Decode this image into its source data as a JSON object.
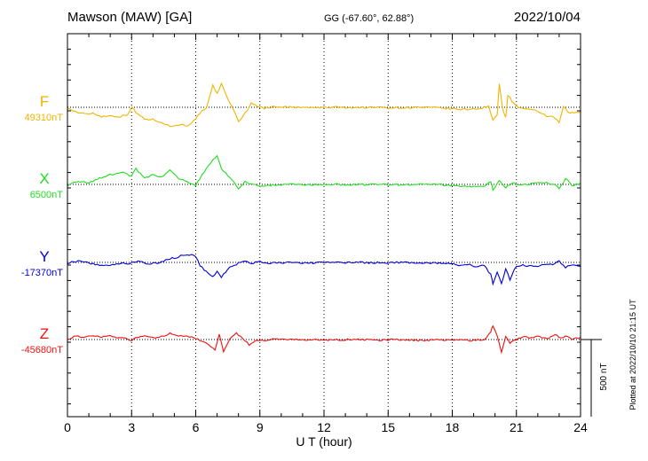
{
  "chart_data": {
    "type": "line",
    "title": "Mawson (MAW)  [GA]",
    "subtitle": "GG (-67.60°,  62.88°)",
    "date": "2022/10/04",
    "xlabel": "U T (hour)",
    "xlim": [
      0,
      24
    ],
    "xticks": [
      "0",
      "3",
      "6",
      "9",
      "12",
      "15",
      "18",
      "21",
      "24"
    ],
    "grid": true,
    "scale_label": "500 nT",
    "footer": "Plotted at 2022/10/10 21:15 UT",
    "series": [
      {
        "name": "F",
        "baseline_label": "49310nT",
        "color": "#f0b400",
        "points": [
          [
            0,
            -6
          ],
          [
            0.4,
            -30
          ],
          [
            0.8,
            -45
          ],
          [
            1.2,
            -38
          ],
          [
            1.6,
            -60
          ],
          [
            2.0,
            -55
          ],
          [
            2.4,
            -60
          ],
          [
            2.8,
            -50
          ],
          [
            3.0,
            5
          ],
          [
            3.2,
            -35
          ],
          [
            3.6,
            -75
          ],
          [
            4.0,
            -80
          ],
          [
            4.4,
            -95
          ],
          [
            4.8,
            -125
          ],
          [
            5.2,
            -112
          ],
          [
            5.6,
            -118
          ],
          [
            6.0,
            -80
          ],
          [
            6.2,
            -35
          ],
          [
            6.5,
            -10
          ],
          [
            6.8,
            140
          ],
          [
            7.0,
            90
          ],
          [
            7.2,
            150
          ],
          [
            7.5,
            60
          ],
          [
            7.8,
            -30
          ],
          [
            8.0,
            -90
          ],
          [
            8.2,
            -60
          ],
          [
            8.4,
            -20
          ],
          [
            8.6,
            30
          ],
          [
            8.8,
            10
          ],
          [
            9.2,
            -5
          ],
          [
            9.8,
            5
          ],
          [
            10.5,
            0
          ],
          [
            11.5,
            -3
          ],
          [
            12.5,
            0
          ],
          [
            13.5,
            -2
          ],
          [
            14.5,
            0
          ],
          [
            15.5,
            -3
          ],
          [
            16.5,
            0
          ],
          [
            17.5,
            -5
          ],
          [
            18.0,
            -10
          ],
          [
            18.5,
            -15
          ],
          [
            19.0,
            -10
          ],
          [
            19.4,
            -5
          ],
          [
            19.7,
            10
          ],
          [
            19.9,
            -90
          ],
          [
            20.1,
            -45
          ],
          [
            20.2,
            150
          ],
          [
            20.35,
            0
          ],
          [
            20.5,
            -70
          ],
          [
            20.6,
            80
          ],
          [
            20.8,
            40
          ],
          [
            21.0,
            5
          ],
          [
            21.5,
            -15
          ],
          [
            22.0,
            -25
          ],
          [
            22.4,
            -55
          ],
          [
            22.8,
            -70
          ],
          [
            23.0,
            -100
          ],
          [
            23.2,
            0
          ],
          [
            23.5,
            -40
          ],
          [
            24,
            -30
          ]
        ]
      },
      {
        "name": "X",
        "baseline_label": "6500nT",
        "color": "#22dd22",
        "points": [
          [
            0,
            -5
          ],
          [
            0.5,
            20
          ],
          [
            1.0,
            10
          ],
          [
            1.5,
            40
          ],
          [
            2.0,
            60
          ],
          [
            2.5,
            80
          ],
          [
            3.0,
            55
          ],
          [
            3.2,
            100
          ],
          [
            3.6,
            40
          ],
          [
            4.0,
            60
          ],
          [
            4.4,
            50
          ],
          [
            4.8,
            90
          ],
          [
            5.2,
            40
          ],
          [
            5.6,
            20
          ],
          [
            6.0,
            -10
          ],
          [
            6.2,
            40
          ],
          [
            6.6,
            120
          ],
          [
            7.0,
            190
          ],
          [
            7.2,
            100
          ],
          [
            7.5,
            60
          ],
          [
            7.8,
            10
          ],
          [
            8.0,
            -30
          ],
          [
            8.3,
            20
          ],
          [
            8.6,
            0
          ],
          [
            9.0,
            -10
          ],
          [
            9.5,
            -5
          ],
          [
            10.5,
            0
          ],
          [
            11.5,
            -3
          ],
          [
            12.5,
            0
          ],
          [
            13.5,
            -2
          ],
          [
            14.5,
            0
          ],
          [
            15.5,
            -3
          ],
          [
            16.5,
            0
          ],
          [
            17.5,
            -2
          ],
          [
            18.0,
            -10
          ],
          [
            18.5,
            -15
          ],
          [
            19.0,
            -10
          ],
          [
            19.5,
            -15
          ],
          [
            19.8,
            20
          ],
          [
            19.9,
            -40
          ],
          [
            20.2,
            30
          ],
          [
            20.5,
            -20
          ],
          [
            20.8,
            10
          ],
          [
            21.2,
            -5
          ],
          [
            21.8,
            5
          ],
          [
            22.4,
            10
          ],
          [
            22.8,
            -5
          ],
          [
            23.0,
            -30
          ],
          [
            23.3,
            40
          ],
          [
            23.6,
            -10
          ],
          [
            24,
            10
          ]
        ]
      },
      {
        "name": "Y",
        "baseline_label": "-17370nT",
        "color": "#0000dd",
        "points": [
          [
            0,
            -5
          ],
          [
            0.5,
            10
          ],
          [
            1.0,
            -5
          ],
          [
            1.5,
            -15
          ],
          [
            2.0,
            -20
          ],
          [
            2.5,
            -5
          ],
          [
            3.0,
            -5
          ],
          [
            3.4,
            10
          ],
          [
            3.8,
            -10
          ],
          [
            4.2,
            -5
          ],
          [
            4.6,
            15
          ],
          [
            5.0,
            30
          ],
          [
            5.4,
            45
          ],
          [
            5.8,
            50
          ],
          [
            6.0,
            40
          ],
          [
            6.2,
            -20
          ],
          [
            6.5,
            -60
          ],
          [
            6.8,
            -95
          ],
          [
            7.0,
            -60
          ],
          [
            7.2,
            -100
          ],
          [
            7.5,
            -40
          ],
          [
            7.8,
            -20
          ],
          [
            8.0,
            -5
          ],
          [
            8.3,
            10
          ],
          [
            8.6,
            -5
          ],
          [
            9.0,
            5
          ],
          [
            9.5,
            -5
          ],
          [
            10.5,
            0
          ],
          [
            11.5,
            -3
          ],
          [
            12.5,
            -2
          ],
          [
            13.5,
            0
          ],
          [
            14.5,
            -2
          ],
          [
            15.5,
            0
          ],
          [
            16.5,
            -2
          ],
          [
            17.5,
            -5
          ],
          [
            18.0,
            -10
          ],
          [
            18.4,
            -20
          ],
          [
            18.8,
            -15
          ],
          [
            19.2,
            -30
          ],
          [
            19.5,
            -20
          ],
          [
            19.8,
            -80
          ],
          [
            19.9,
            -140
          ],
          [
            20.1,
            -60
          ],
          [
            20.3,
            -140
          ],
          [
            20.5,
            -40
          ],
          [
            20.7,
            -110
          ],
          [
            21.0,
            -20
          ],
          [
            21.5,
            -20
          ],
          [
            22.0,
            -30
          ],
          [
            22.4,
            -10
          ],
          [
            22.8,
            -10
          ],
          [
            23.0,
            5
          ],
          [
            23.3,
            -30
          ],
          [
            23.6,
            -20
          ],
          [
            24,
            -25
          ]
        ]
      },
      {
        "name": "Z",
        "baseline_label": "-45680nT",
        "color": "#ee1111",
        "points": [
          [
            0,
            5
          ],
          [
            0.4,
            20
          ],
          [
            0.8,
            15
          ],
          [
            1.2,
            25
          ],
          [
            1.6,
            15
          ],
          [
            2.0,
            20
          ],
          [
            2.4,
            15
          ],
          [
            2.8,
            5
          ],
          [
            3.0,
            -5
          ],
          [
            3.2,
            10
          ],
          [
            3.6,
            25
          ],
          [
            4.0,
            10
          ],
          [
            4.4,
            20
          ],
          [
            4.8,
            40
          ],
          [
            5.2,
            25
          ],
          [
            5.6,
            20
          ],
          [
            6.0,
            10
          ],
          [
            6.3,
            -15
          ],
          [
            6.6,
            -30
          ],
          [
            6.9,
            -70
          ],
          [
            7.1,
            40
          ],
          [
            7.3,
            -80
          ],
          [
            7.6,
            10
          ],
          [
            7.9,
            40
          ],
          [
            8.2,
            10
          ],
          [
            8.5,
            -35
          ],
          [
            8.8,
            -10
          ],
          [
            9.2,
            -5
          ],
          [
            9.8,
            5
          ],
          [
            10.5,
            0
          ],
          [
            11.5,
            -3
          ],
          [
            12.5,
            -2
          ],
          [
            13.5,
            0
          ],
          [
            14.5,
            -3
          ],
          [
            15.5,
            0
          ],
          [
            16.5,
            -5
          ],
          [
            17.5,
            -3
          ],
          [
            18.0,
            -5
          ],
          [
            18.5,
            -3
          ],
          [
            19.0,
            -5
          ],
          [
            19.5,
            0
          ],
          [
            19.8,
            50
          ],
          [
            19.9,
            90
          ],
          [
            20.1,
            30
          ],
          [
            20.3,
            -80
          ],
          [
            20.5,
            20
          ],
          [
            20.7,
            -20
          ],
          [
            21.0,
            0
          ],
          [
            21.3,
            20
          ],
          [
            21.7,
            10
          ],
          [
            22.0,
            20
          ],
          [
            22.4,
            5
          ],
          [
            22.8,
            30
          ],
          [
            23.0,
            15
          ],
          [
            23.3,
            20
          ],
          [
            23.6,
            5
          ],
          [
            24,
            15
          ]
        ]
      }
    ]
  }
}
